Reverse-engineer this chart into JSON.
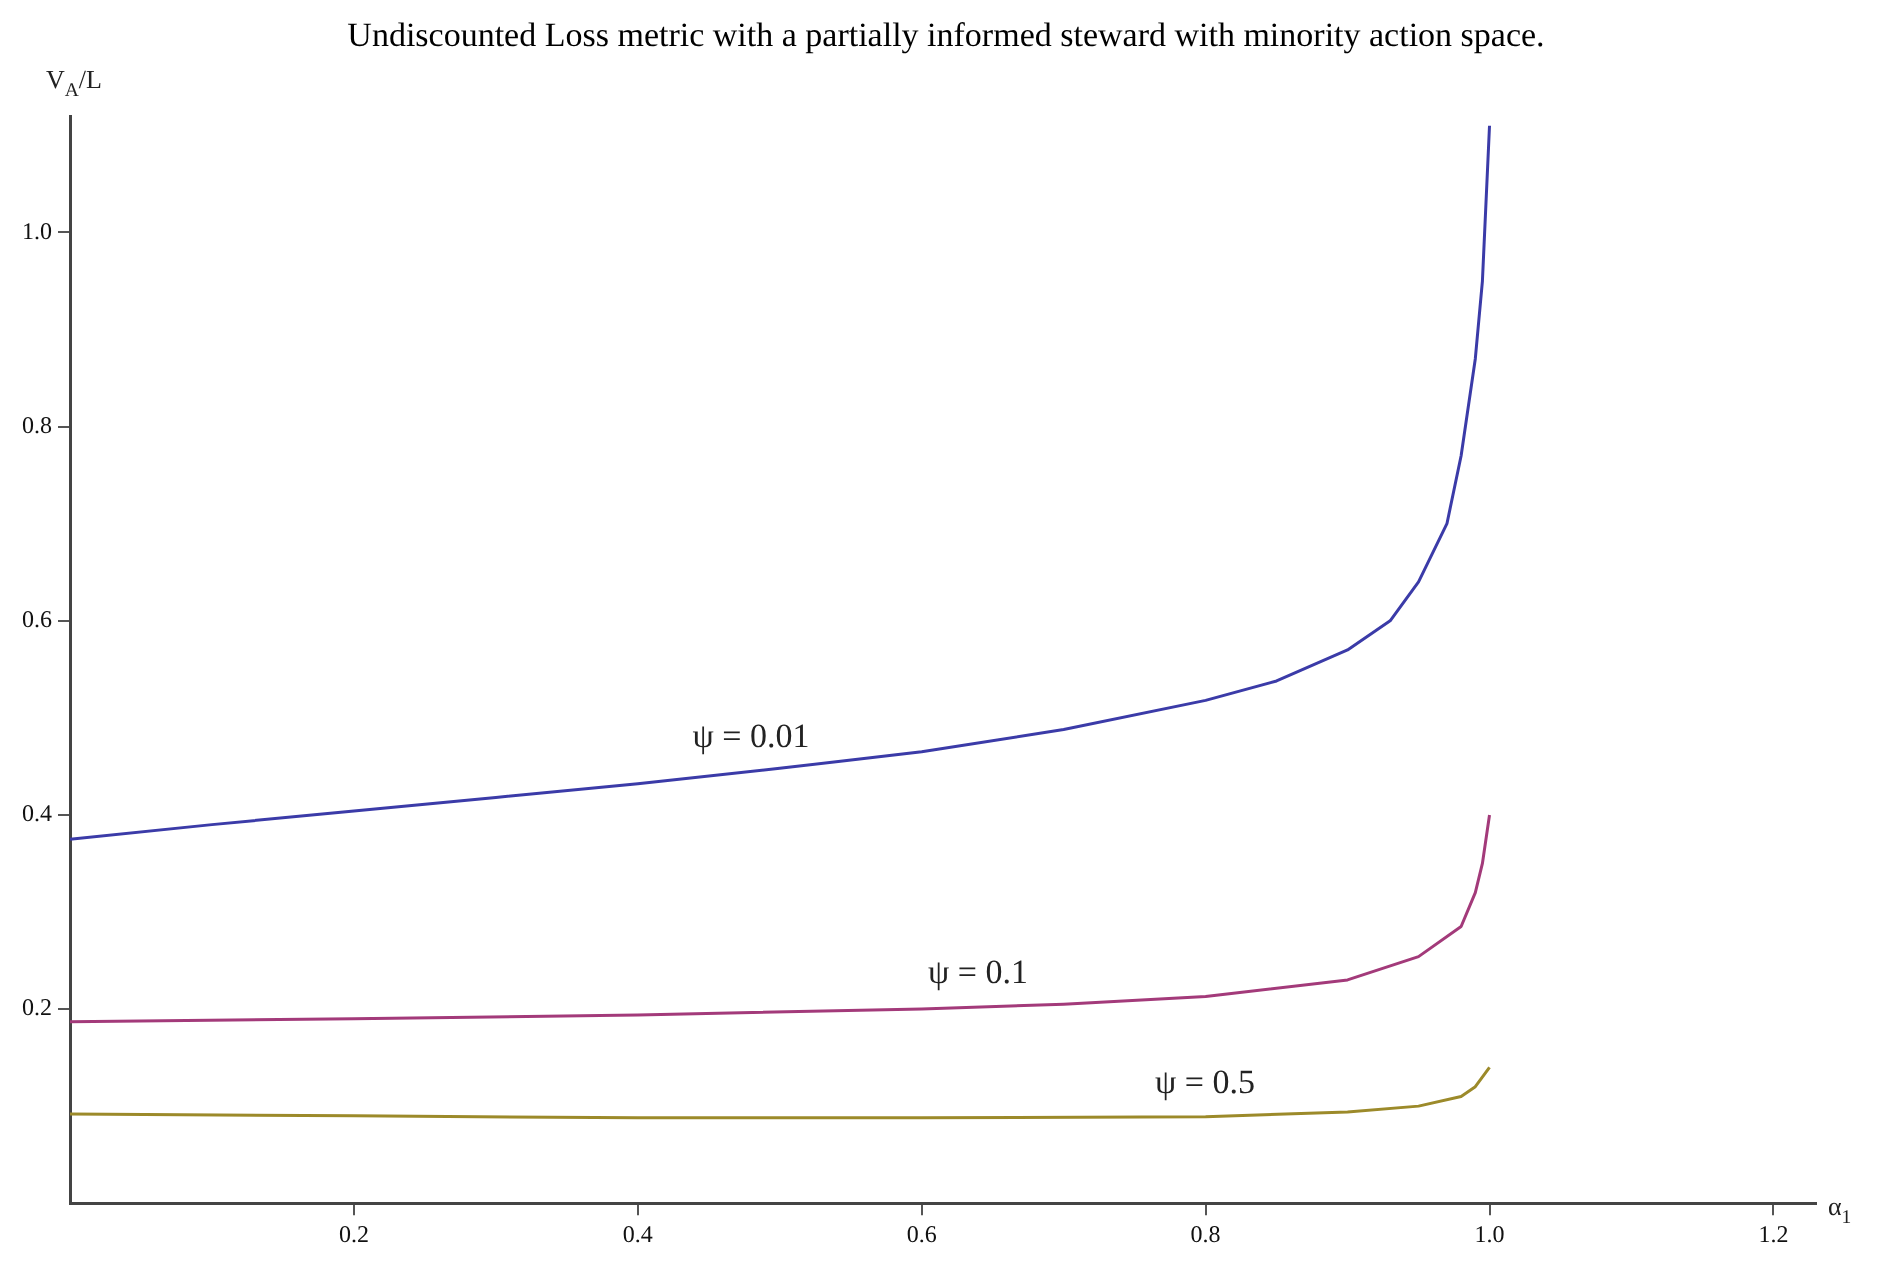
{
  "chart_data": {
    "type": "line",
    "title": "Undiscounted Loss metric with a partially informed steward with minority action space.",
    "xlabel": "α$_{1}$",
    "ylabel": "V$_{A}$/L",
    "xlim": [
      0,
      1.23
    ],
    "ylim": [
      0,
      1.12
    ],
    "xticks": [
      {
        "value": 0.2,
        "label": "0.2"
      },
      {
        "value": 0.4,
        "label": "0.4"
      },
      {
        "value": 0.6,
        "label": "0.6"
      },
      {
        "value": 0.8,
        "label": "0.8"
      },
      {
        "value": 1,
        "label": "1.0"
      },
      {
        "value": 1.2,
        "label": "1.2"
      }
    ],
    "yticks": [
      {
        "value": 0.2,
        "label": "0.2"
      },
      {
        "value": 0.4,
        "label": "0.4"
      },
      {
        "value": 0.6,
        "label": "0.6"
      },
      {
        "value": 0.8,
        "label": "0.8"
      },
      {
        "value": 1,
        "label": "1.0"
      }
    ],
    "grid": false,
    "legend": false,
    "marker": "none",
    "line_style": "solid",
    "series": [
      {
        "name": "ψ = 0.01",
        "color": "#3b3ba8",
        "x": [
          0,
          0.1,
          0.2,
          0.3,
          0.4,
          0.5,
          0.6,
          0.7,
          0.8,
          0.85,
          0.9,
          0.93,
          0.95,
          0.97,
          0.98,
          0.99,
          0.995,
          1.0
        ],
        "values": [
          0.375,
          0.39,
          0.404,
          0.418,
          0.432,
          0.448,
          0.465,
          0.488,
          0.518,
          0.538,
          0.57,
          0.6,
          0.64,
          0.7,
          0.77,
          0.87,
          0.95,
          1.11
        ]
      },
      {
        "name": "ψ = 0.1",
        "color": "#a33a7a",
        "x": [
          0,
          0.2,
          0.4,
          0.6,
          0.7,
          0.8,
          0.9,
          0.95,
          0.98,
          0.99,
          0.995,
          1.0
        ],
        "values": [
          0.187,
          0.19,
          0.194,
          0.2,
          0.205,
          0.213,
          0.23,
          0.254,
          0.285,
          0.32,
          0.35,
          0.4
        ]
      },
      {
        "name": "ψ = 0.5",
        "color": "#9c8a2a",
        "x": [
          0,
          0.2,
          0.4,
          0.6,
          0.8,
          0.9,
          0.95,
          0.98,
          0.99,
          1.0
        ],
        "values": [
          0.092,
          0.09,
          0.088,
          0.088,
          0.089,
          0.094,
          0.1,
          0.11,
          0.12,
          0.14
        ]
      }
    ]
  }
}
